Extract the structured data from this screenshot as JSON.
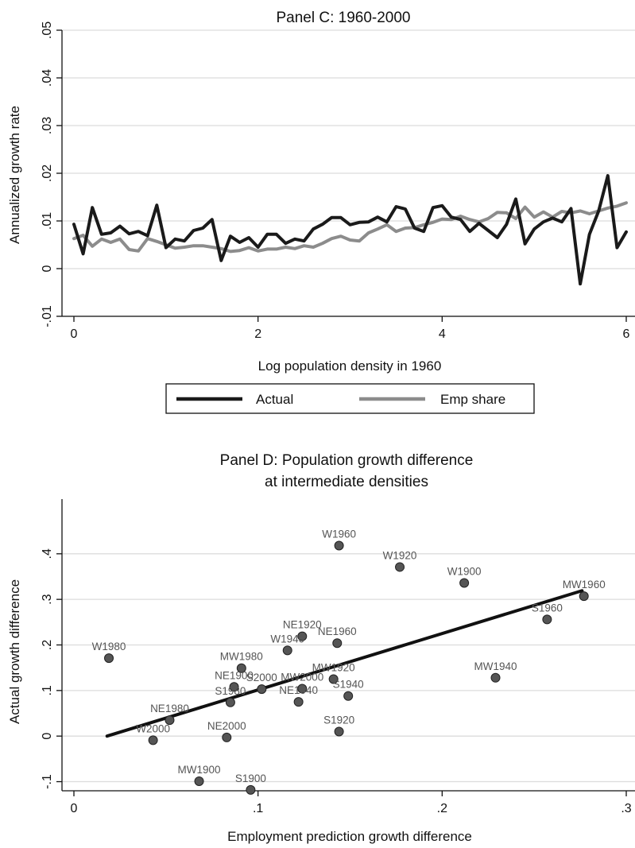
{
  "chart_data": [
    {
      "type": "line",
      "title": "Panel C: 1960-2000",
      "xlabel": "Log population density in 1960",
      "ylabel": "Annualized growth rate",
      "xlim": [
        0,
        6
      ],
      "ylim": [
        -0.01,
        0.05
      ],
      "xticks": [
        {
          "v": 0,
          "label": "0"
        },
        {
          "v": 2,
          "label": "2"
        },
        {
          "v": 4,
          "label": "4"
        },
        {
          "v": 6,
          "label": "6"
        }
      ],
      "yticks": [
        {
          "v": -0.01,
          "label": "-.01"
        },
        {
          "v": 0,
          "label": "0"
        },
        {
          "v": 0.01,
          "label": ".01"
        },
        {
          "v": 0.02,
          "label": ".02"
        },
        {
          "v": 0.03,
          "label": ".03"
        },
        {
          "v": 0.04,
          "label": ".04"
        },
        {
          "v": 0.05,
          "label": ".05"
        }
      ],
      "grid": true,
      "legend": "bottom",
      "series": [
        {
          "name": "Actual",
          "color": "#1a1a1a",
          "x": [
            0,
            0.1,
            0.2,
            0.3,
            0.4,
            0.5,
            0.6,
            0.7,
            0.8,
            0.9,
            1.0,
            1.1,
            1.2,
            1.3,
            1.4,
            1.5,
            1.6,
            1.7,
            1.8,
            1.9,
            2.0,
            2.1,
            2.2,
            2.3,
            2.4,
            2.5,
            2.6,
            2.7,
            2.8,
            2.9,
            3.0,
            3.1,
            3.2,
            3.3,
            3.4,
            3.5,
            3.6,
            3.7,
            3.8,
            3.9,
            4.0,
            4.1,
            4.2,
            4.3,
            4.4,
            4.5,
            4.6,
            4.7,
            4.8,
            4.9,
            5.0,
            5.1,
            5.2,
            5.3,
            5.4,
            5.5,
            5.6,
            5.7,
            5.8,
            5.9,
            6.0
          ],
          "y": [
            0.0093,
            0.0031,
            0.0128,
            0.0072,
            0.0075,
            0.0089,
            0.0073,
            0.0078,
            0.0069,
            0.0133,
            0.0044,
            0.0062,
            0.0058,
            0.008,
            0.0085,
            0.0103,
            0.0017,
            0.0068,
            0.0055,
            0.0065,
            0.0045,
            0.0072,
            0.0072,
            0.0053,
            0.0062,
            0.0058,
            0.0083,
            0.0093,
            0.0107,
            0.0107,
            0.0092,
            0.0097,
            0.0098,
            0.0108,
            0.0098,
            0.013,
            0.0125,
            0.0085,
            0.0078,
            0.0128,
            0.0132,
            0.0108,
            0.0103,
            0.0078,
            0.0095,
            0.008,
            0.0065,
            0.0093,
            0.0146,
            0.0052,
            0.0083,
            0.0098,
            0.0106,
            0.0098,
            0.0126,
            -0.0032,
            0.0072,
            0.0121,
            0.0195,
            0.0044,
            0.0077
          ]
        },
        {
          "name": "Emp share",
          "color": "#8c8c8c",
          "x": [
            0,
            0.1,
            0.2,
            0.3,
            0.4,
            0.5,
            0.6,
            0.7,
            0.8,
            0.9,
            1.0,
            1.1,
            1.2,
            1.3,
            1.4,
            1.5,
            1.6,
            1.7,
            1.8,
            1.9,
            2.0,
            2.1,
            2.2,
            2.3,
            2.4,
            2.5,
            2.6,
            2.7,
            2.8,
            2.9,
            3.0,
            3.1,
            3.2,
            3.3,
            3.4,
            3.5,
            3.6,
            3.7,
            3.8,
            3.9,
            4.0,
            4.1,
            4.2,
            4.3,
            4.4,
            4.5,
            4.6,
            4.7,
            4.8,
            4.9,
            5.0,
            5.1,
            5.2,
            5.3,
            5.4,
            5.5,
            5.6,
            5.7,
            5.8,
            5.9,
            6.0
          ],
          "y": [
            0.0063,
            0.007,
            0.0047,
            0.0062,
            0.0055,
            0.0062,
            0.004,
            0.0037,
            0.0063,
            0.0057,
            0.005,
            0.0043,
            0.0045,
            0.0048,
            0.0048,
            0.0045,
            0.0042,
            0.0036,
            0.0038,
            0.0044,
            0.0037,
            0.0041,
            0.0041,
            0.0045,
            0.0042,
            0.0048,
            0.0045,
            0.0053,
            0.0063,
            0.0068,
            0.006,
            0.0058,
            0.0075,
            0.0083,
            0.0092,
            0.0078,
            0.0085,
            0.0086,
            0.0092,
            0.0097,
            0.0104,
            0.0103,
            0.011,
            0.0103,
            0.0098,
            0.0105,
            0.0118,
            0.0117,
            0.0105,
            0.0129,
            0.0108,
            0.0119,
            0.0108,
            0.012,
            0.0117,
            0.0121,
            0.0115,
            0.0121,
            0.0127,
            0.0131,
            0.0138
          ]
        }
      ]
    },
    {
      "type": "scatter",
      "title": [
        "Panel D:  Population growth difference",
        "at intermediate densities"
      ],
      "xlabel": "Employment prediction growth difference",
      "ylabel": "Actual growth difference",
      "xlim": [
        0,
        0.3
      ],
      "ylim": [
        -0.12,
        0.52
      ],
      "xticks": [
        {
          "v": 0,
          "label": "0"
        },
        {
          "v": 0.1,
          "label": ".1"
        },
        {
          "v": 0.2,
          "label": ".2"
        },
        {
          "v": 0.3,
          "label": ".3"
        }
      ],
      "yticks": [
        {
          "v": -0.1,
          "label": "-.1"
        },
        {
          "v": 0,
          "label": "0"
        },
        {
          "v": 0.1,
          "label": ".1"
        },
        {
          "v": 0.2,
          "label": ".2"
        },
        {
          "v": 0.3,
          "label": ".3"
        },
        {
          "v": 0.4,
          "label": ".4"
        }
      ],
      "grid": true,
      "point_color": "#555555",
      "points": [
        {
          "label": "W1960",
          "x": 0.144,
          "y": 0.418
        },
        {
          "label": "W1920",
          "x": 0.177,
          "y": 0.371
        },
        {
          "label": "W1900",
          "x": 0.212,
          "y": 0.336
        },
        {
          "label": "MW1960",
          "x": 0.277,
          "y": 0.307
        },
        {
          "label": "S1960",
          "x": 0.257,
          "y": 0.256
        },
        {
          "label": "W1980",
          "x": 0.019,
          "y": 0.171
        },
        {
          "label": "NE1920",
          "x": 0.124,
          "y": 0.219
        },
        {
          "label": "W1940",
          "x": 0.116,
          "y": 0.188
        },
        {
          "label": "NE1960",
          "x": 0.143,
          "y": 0.204
        },
        {
          "label": "MW1980",
          "x": 0.091,
          "y": 0.149
        },
        {
          "label": "MW1940",
          "x": 0.229,
          "y": 0.128
        },
        {
          "label": "MW1920",
          "x": 0.141,
          "y": 0.125
        },
        {
          "label": "NE1900",
          "x": 0.087,
          "y": 0.108
        },
        {
          "label": "S2000",
          "x": 0.102,
          "y": 0.103
        },
        {
          "label": "MW2000",
          "x": 0.124,
          "y": 0.104
        },
        {
          "label": "S1940",
          "x": 0.149,
          "y": 0.088
        },
        {
          "label": "NE1940",
          "x": 0.122,
          "y": 0.075
        },
        {
          "label": "S1980",
          "x": 0.085,
          "y": 0.074
        },
        {
          "label": "NE1980",
          "x": 0.052,
          "y": 0.035
        },
        {
          "label": "S1920",
          "x": 0.144,
          "y": 0.01
        },
        {
          "label": "W2000",
          "x": 0.043,
          "y": -0.009
        },
        {
          "label": "NE2000",
          "x": 0.083,
          "y": -0.003
        },
        {
          "label": "MW1900",
          "x": 0.068,
          "y": -0.099
        },
        {
          "label": "S1900",
          "x": 0.096,
          "y": -0.118
        }
      ],
      "fit_line": {
        "x": [
          0.018,
          0.276
        ],
        "y": [
          0.0,
          0.319
        ],
        "color": "#111111"
      }
    }
  ]
}
